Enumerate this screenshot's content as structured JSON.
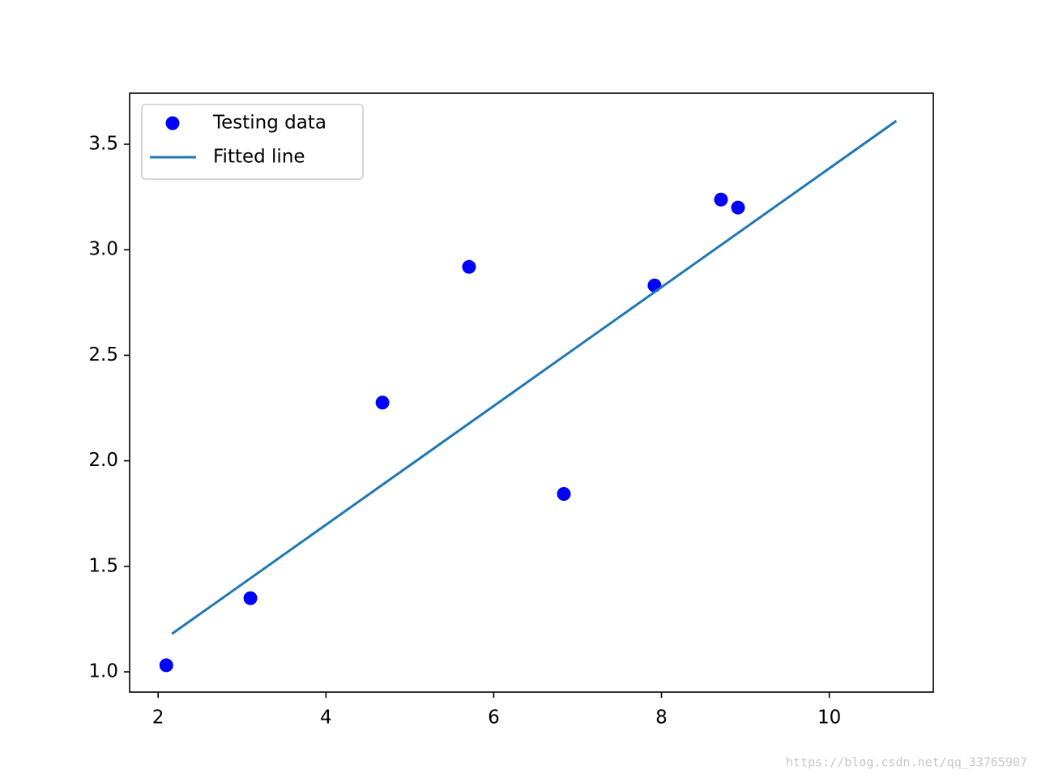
{
  "chart_data": {
    "type": "scatter",
    "series": [
      {
        "name": "Testing data",
        "style": "marker",
        "color": "#0000ff",
        "x": [
          2.097,
          3.1,
          4.674,
          5.706,
          6.836,
          7.917,
          8.709,
          8.912
        ],
        "values": [
          1.031,
          1.349,
          2.276,
          2.919,
          1.843,
          2.831,
          3.238,
          3.2
        ]
      },
      {
        "name": "Fitted line",
        "style": "line",
        "color": "#1f77b4",
        "x": [
          2.164,
          10.8
        ],
        "values": [
          1.18,
          3.611
        ]
      }
    ],
    "xlim": [
      1.66,
      11.24
    ],
    "xticks": [
      2,
      4,
      6,
      8,
      10
    ],
    "ylim": [
      0.904,
      3.742
    ],
    "yticks": [
      {
        "value": 1.0,
        "label": "1.0"
      },
      {
        "value": 1.5,
        "label": "1.5"
      },
      {
        "value": 2.0,
        "label": "2.0"
      },
      {
        "value": 2.5,
        "label": "2.5"
      },
      {
        "value": 3.0,
        "label": "3.0"
      },
      {
        "value": 3.5,
        "label": "3.5"
      }
    ],
    "legend": "upper left",
    "watermark": "https://blog.csdn.net/qq_33765907"
  }
}
